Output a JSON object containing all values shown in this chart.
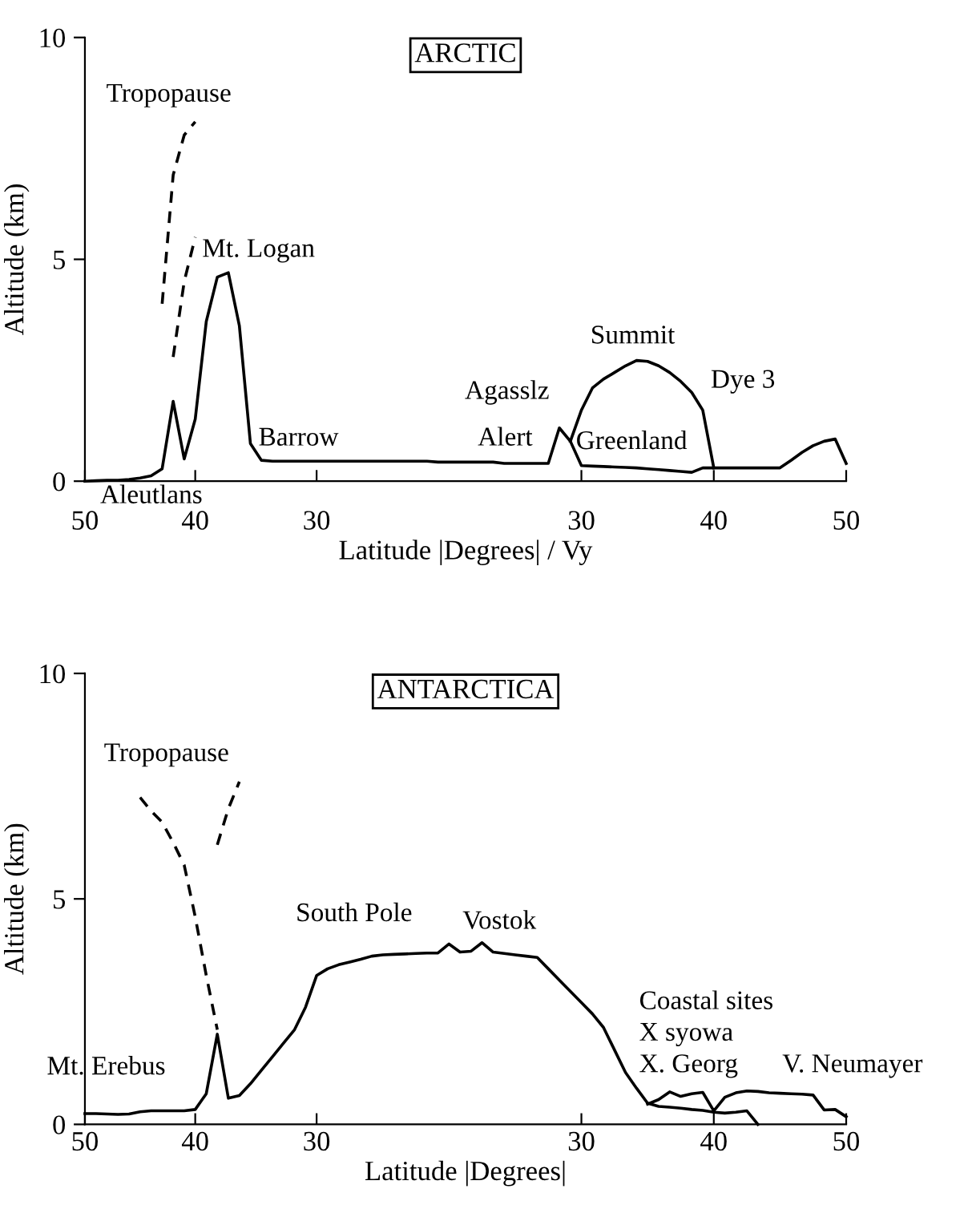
{
  "chart_data": [
    {
      "type": "line",
      "title": "ARCTIC",
      "xlabel": "Latitude |Degrees| / Vy",
      "ylabel": "Altitude (km)",
      "ylim": [
        0,
        10
      ],
      "yticks": [
        0,
        5,
        10
      ],
      "categories": [
        "50",
        null,
        null,
        null,
        null,
        null,
        null,
        null,
        null,
        null,
        "40",
        null,
        null,
        null,
        null,
        null,
        null,
        null,
        null,
        null,
        null,
        "30",
        null,
        null,
        null,
        null,
        null,
        null,
        null,
        null,
        null,
        null,
        null,
        null,
        null,
        null,
        null,
        null,
        null,
        null,
        null,
        null,
        null,
        null,
        null,
        "30",
        null,
        null,
        null,
        null,
        null,
        null,
        null,
        null,
        null,
        null,
        null,
        "40",
        null,
        null,
        null,
        null,
        null,
        null,
        null,
        null,
        null,
        null,
        null,
        "50"
      ],
      "grid": false,
      "legend": false,
      "marker": "none",
      "series": [
        {
          "color": "#000000",
          "line_style": "solid",
          "values": [
            0,
            0.01,
            0.02,
            0.02,
            0.04,
            0.07,
            0.12,
            0.28,
            1.8,
            0.5,
            1.4,
            3.6,
            4.6,
            4.7,
            3.5,
            0.85,
            0.47,
            0.45,
            0.45,
            0.45,
            0.45,
            0.45,
            0.45,
            0.45,
            0.45,
            0.45,
            0.45,
            0.45,
            0.45,
            0.45,
            0.45,
            0.45,
            0.43,
            0.43,
            0.43,
            0.43,
            0.43,
            0.43,
            0.4,
            0.4,
            0.4,
            0.4,
            0.4,
            1.2,
            0.9,
            0.35,
            0.34,
            0.33,
            0.32,
            0.31,
            0.3,
            0.28,
            0.26,
            0.24,
            0.22,
            0.2,
            0.3,
            0.3,
            0.3,
            0.3,
            0.3,
            0.3,
            0.3,
            0.3,
            0.47,
            0.65,
            0.8,
            0.9,
            0.95,
            0.4
          ]
        },
        {
          "color": "#000000",
          "line_style": "solid",
          "values": [
            null,
            null,
            null,
            null,
            null,
            null,
            null,
            null,
            null,
            null,
            null,
            null,
            null,
            null,
            null,
            null,
            null,
            null,
            null,
            null,
            null,
            null,
            null,
            null,
            null,
            null,
            null,
            null,
            null,
            null,
            null,
            null,
            null,
            null,
            null,
            null,
            null,
            null,
            null,
            null,
            null,
            null,
            null,
            null,
            0.9,
            1.6,
            2.1,
            2.3,
            2.45,
            2.6,
            2.72,
            2.7,
            2.6,
            2.45,
            2.25,
            2.0,
            1.6,
            0.3,
            null,
            null,
            null,
            null,
            null,
            null,
            null,
            null,
            null,
            null,
            null,
            null
          ]
        },
        {
          "color": "#000000",
          "line_style": "dashed",
          "values": [
            null,
            null,
            null,
            null,
            null,
            null,
            null,
            4.0,
            6.9,
            7.8,
            8.1,
            null,
            null,
            null,
            null,
            null,
            null,
            null,
            null,
            null,
            null,
            null,
            null,
            null,
            null,
            null,
            null,
            null,
            null,
            null,
            null,
            null,
            null,
            null,
            null,
            null,
            null,
            null,
            null,
            null,
            null,
            null,
            null,
            null,
            null,
            null,
            null,
            null,
            null,
            null,
            null,
            null,
            null,
            null,
            null,
            null,
            null,
            null,
            null,
            null,
            null,
            null,
            null,
            null,
            null,
            null,
            null,
            null,
            null,
            null
          ]
        },
        {
          "color": "#000000",
          "line_style": "dashed",
          "values": [
            null,
            null,
            null,
            null,
            null,
            null,
            null,
            null,
            2.8,
            4.5,
            5.5,
            null,
            null,
            null,
            null,
            null,
            null,
            null,
            null,
            null,
            null,
            null,
            null,
            null,
            null,
            null,
            null,
            null,
            null,
            null,
            null,
            null,
            null,
            null,
            null,
            null,
            null,
            null,
            null,
            null,
            null,
            null,
            null,
            null,
            null,
            null,
            null,
            null,
            null,
            null,
            null,
            null,
            null,
            null,
            null,
            null,
            null,
            null,
            null,
            null,
            null,
            null,
            null,
            null,
            null,
            null,
            null,
            null,
            null,
            null
          ]
        }
      ],
      "annotations": [
        "Tropopause",
        "Mt. Logan",
        "Barrow",
        "Agasslz",
        "Alert",
        "Greenland",
        "Summit",
        "Dye 3",
        "Aleutlans"
      ]
    },
    {
      "type": "line",
      "title": "ANTARCTICA",
      "xlabel": "Latitude |Degrees|",
      "ylabel": "Altitude (km)",
      "ylim": [
        0,
        10
      ],
      "yticks": [
        0,
        5,
        10
      ],
      "categories": [
        "50",
        null,
        null,
        null,
        null,
        null,
        null,
        null,
        null,
        null,
        "40",
        null,
        null,
        null,
        null,
        null,
        null,
        null,
        null,
        null,
        null,
        "30",
        null,
        null,
        null,
        null,
        null,
        null,
        null,
        null,
        null,
        null,
        null,
        null,
        null,
        null,
        null,
        null,
        null,
        null,
        null,
        null,
        null,
        null,
        null,
        "30",
        null,
        null,
        null,
        null,
        null,
        null,
        null,
        null,
        null,
        null,
        null,
        "40",
        null,
        null,
        null,
        null,
        null,
        null,
        null,
        null,
        null,
        null,
        null,
        "50"
      ],
      "grid": false,
      "legend": false,
      "marker": "none",
      "series": [
        {
          "color": "#000000",
          "line_style": "solid",
          "values": [
            0.24,
            0.24,
            0.23,
            0.22,
            0.23,
            0.28,
            0.3,
            0.3,
            0.3,
            0.3,
            0.33,
            0.68,
            2.0,
            0.58,
            0.64,
            0.9,
            1.2,
            1.5,
            1.8,
            2.1,
            2.6,
            3.3,
            3.45,
            3.54,
            3.6,
            3.66,
            3.73,
            3.76,
            3.77,
            3.78,
            3.79,
            3.8,
            3.8,
            4.0,
            3.82,
            3.84,
            4.03,
            3.82,
            3.79,
            3.76,
            3.73,
            3.7,
            3.45,
            3.2,
            2.95,
            2.7,
            2.45,
            2.15,
            1.65,
            1.15,
            0.8,
            0.47,
            0.4,
            0.38,
            0.36,
            0.33,
            0.31,
            0.27,
            0.25,
            0.27,
            0.3,
            0.0,
            null,
            null,
            null,
            null,
            null,
            null,
            null,
            null
          ]
        },
        {
          "color": "#000000",
          "line_style": "solid",
          "values": [
            null,
            null,
            null,
            null,
            null,
            null,
            null,
            null,
            null,
            null,
            null,
            null,
            null,
            null,
            null,
            null,
            null,
            null,
            null,
            null,
            null,
            null,
            null,
            null,
            null,
            null,
            null,
            null,
            null,
            null,
            null,
            null,
            null,
            null,
            null,
            null,
            null,
            null,
            null,
            null,
            null,
            null,
            null,
            null,
            null,
            null,
            null,
            null,
            null,
            null,
            null,
            0.45,
            0.55,
            0.72,
            0.62,
            0.68,
            0.71,
            0.3,
            0.6,
            0.7,
            0.74,
            0.73,
            0.7,
            0.69,
            0.68,
            0.67,
            0.65,
            0.32,
            0.33,
            0.17
          ]
        },
        {
          "color": "#000000",
          "line_style": "dashed",
          "values": [
            null,
            null,
            null,
            null,
            null,
            7.25,
            6.95,
            6.7,
            6.25,
            5.75,
            4.6,
            3.3,
            2.1,
            null,
            null,
            null,
            null,
            null,
            null,
            null,
            null,
            null,
            null,
            null,
            null,
            null,
            null,
            null,
            null,
            null,
            null,
            null,
            null,
            null,
            null,
            null,
            null,
            null,
            null,
            null,
            null,
            null,
            null,
            null,
            null,
            null,
            null,
            null,
            null,
            null,
            null,
            null,
            null,
            null,
            null,
            null,
            null,
            null,
            null,
            null,
            null,
            null,
            null,
            null,
            null,
            null,
            null,
            null,
            null,
            null
          ]
        },
        {
          "color": "#000000",
          "line_style": "dashed",
          "values": [
            null,
            null,
            null,
            null,
            null,
            null,
            null,
            null,
            null,
            null,
            null,
            null,
            6.2,
            7.0,
            7.6,
            null,
            null,
            null,
            null,
            null,
            null,
            null,
            null,
            null,
            null,
            null,
            null,
            null,
            null,
            null,
            null,
            null,
            null,
            null,
            null,
            null,
            null,
            null,
            null,
            null,
            null,
            null,
            null,
            null,
            null,
            null,
            null,
            null,
            null,
            null,
            null,
            null,
            null,
            null,
            null,
            null,
            null,
            null,
            null,
            null,
            null,
            null,
            null,
            null,
            null,
            null,
            null,
            null,
            null,
            null
          ]
        }
      ],
      "annotations": [
        "Tropopause",
        "Mt. Erebus",
        "South Pole",
        "Vostok",
        "Coastal sites",
        "X syowa",
        "X. Georg",
        "V. Neumayer"
      ]
    }
  ]
}
